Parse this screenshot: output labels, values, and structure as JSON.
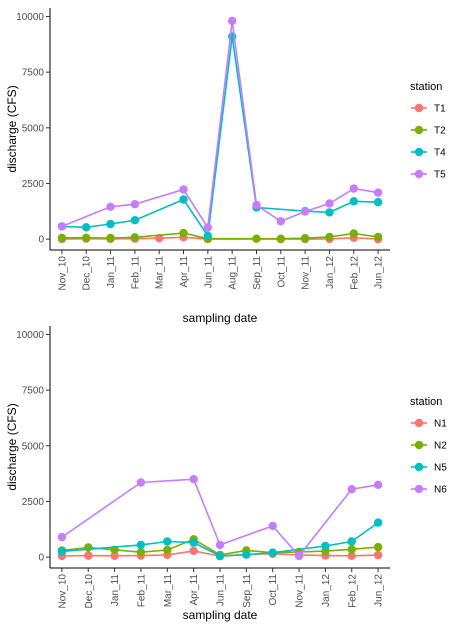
{
  "chart_data": [
    {
      "type": "line",
      "xlabel": "sampling date",
      "ylabel": "discharge (CFS)",
      "ylim": [
        0,
        10000
      ],
      "yticks": [
        0,
        2500,
        5000,
        7500,
        10000
      ],
      "categories": [
        "Nov_10",
        "Dec_10",
        "Jan_11",
        "Feb_11",
        "Mar_11",
        "Apr_11",
        "Jun_11",
        "Aug_11",
        "Sep_11",
        "Oct_11",
        "Nov_11",
        "Jan_12",
        "Feb_12",
        "Jun_12"
      ],
      "legend": {
        "title": "station",
        "placement": "right"
      },
      "series": [
        {
          "name": "T1",
          "color": "#F8766D",
          "values": [
            0,
            20,
            10,
            20,
            40,
            80,
            0,
            null,
            null,
            0,
            0,
            10,
            60,
            0
          ]
        },
        {
          "name": "T2",
          "color": "#7CAE00",
          "values": [
            60,
            60,
            50,
            80,
            null,
            270,
            20,
            null,
            20,
            20,
            40,
            100,
            250,
            100
          ]
        },
        {
          "name": "T4",
          "color": "#00BFC4",
          "values": [
            570,
            530,
            680,
            850,
            null,
            1780,
            150,
            9100,
            1420,
            null,
            1260,
            1200,
            1700,
            1660
          ]
        },
        {
          "name": "T5",
          "color": "#C77CFF",
          "values": [
            570,
            null,
            1450,
            1570,
            null,
            2230,
            520,
            9800,
            1530,
            800,
            1240,
            1600,
            2270,
            2090
          ]
        }
      ]
    },
    {
      "type": "line",
      "xlabel": "sampling date",
      "ylabel": "discharge (CFS)",
      "ylim": [
        0,
        10000
      ],
      "yticks": [
        0,
        2500,
        5000,
        7500,
        10000
      ],
      "categories": [
        "Nov_10",
        "Dec_10",
        "Jan_11",
        "Feb_11",
        "Mar_11",
        "Apr_11",
        "Jun_11",
        "Sep_11",
        "Oct_11",
        "Nov_11",
        "Jan_12",
        "Feb_12",
        "Jun_12"
      ],
      "legend": {
        "title": "station",
        "placement": "right"
      },
      "series": [
        {
          "name": "N1",
          "color": "#F8766D",
          "values": [
            50,
            70,
            60,
            70,
            100,
            280,
            40,
            120,
            150,
            100,
            70,
            60,
            90
          ]
        },
        {
          "name": "N2",
          "color": "#7CAE00",
          "values": [
            300,
            430,
            330,
            220,
            320,
            800,
            100,
            300,
            200,
            230,
            270,
            350,
            450
          ]
        },
        {
          "name": "N5",
          "color": "#00BFC4",
          "values": [
            250,
            null,
            null,
            550,
            700,
            650,
            50,
            110,
            200,
            null,
            500,
            700,
            1550
          ]
        },
        {
          "name": "N6",
          "color": "#C77CFF",
          "values": [
            900,
            null,
            null,
            3350,
            null,
            3500,
            550,
            null,
            1400,
            50,
            null,
            3050,
            3250
          ]
        }
      ]
    }
  ]
}
